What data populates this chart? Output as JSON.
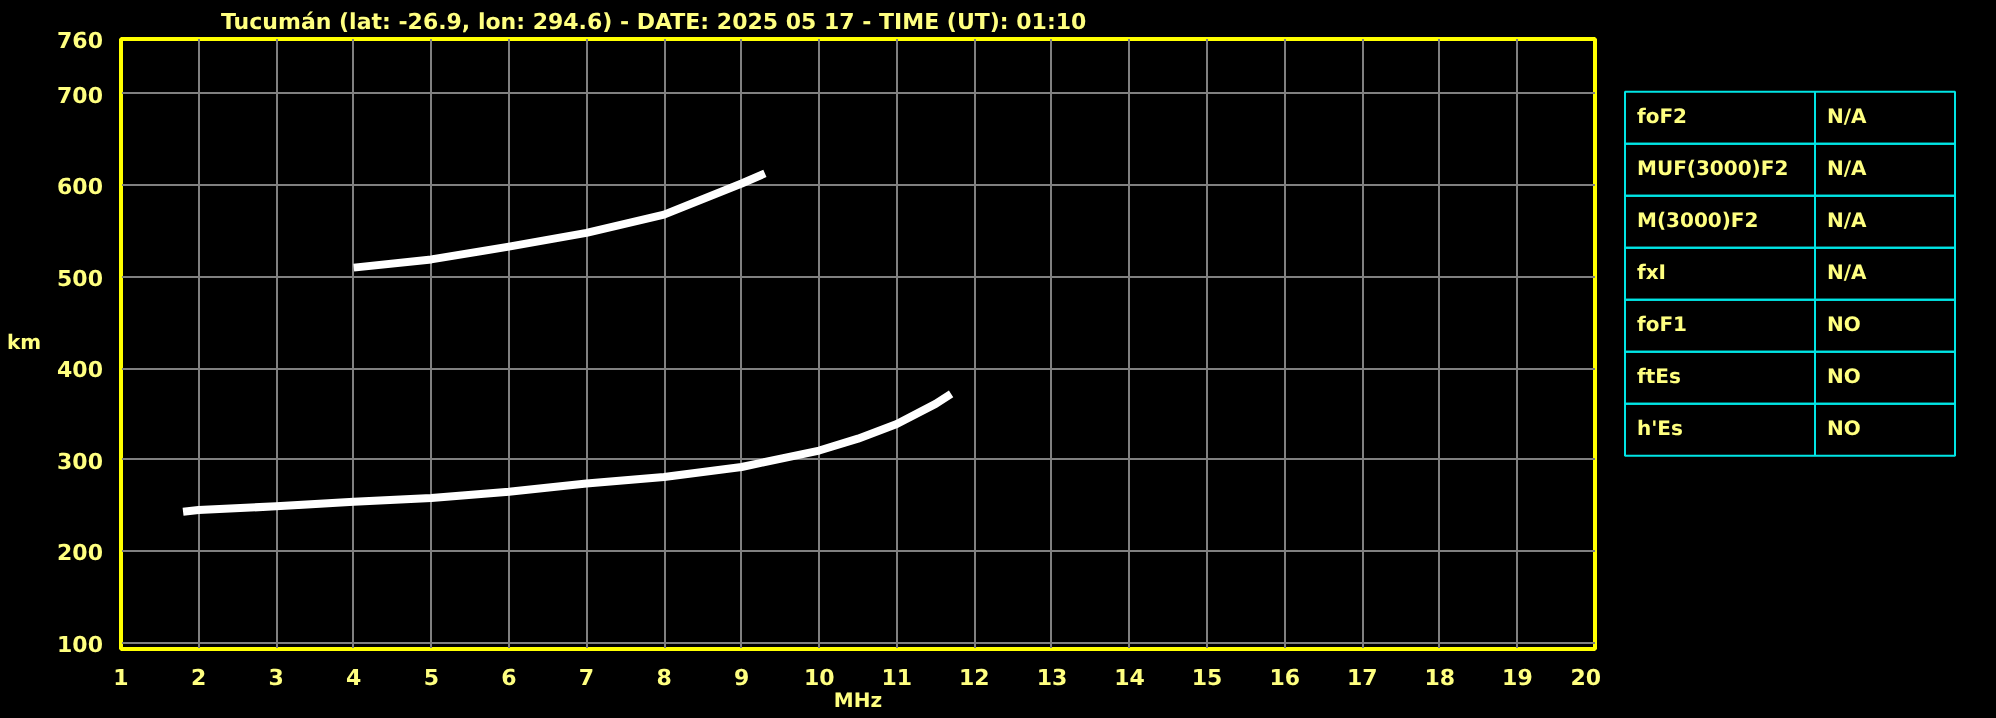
{
  "chart_data": [
    {
      "type": "line",
      "title": "Tucumán (lat: -26.9, lon: 294.6) - DATE: 2025 05 17 - TIME (UT): 01:10",
      "xlabel": "MHz",
      "ylabel": "km",
      "xlim": [
        1,
        20
      ],
      "ylim": [
        93,
        760
      ],
      "xticks": [
        1,
        2,
        3,
        4,
        5,
        6,
        7,
        8,
        9,
        10,
        11,
        12,
        13,
        14,
        15,
        16,
        17,
        18,
        19,
        20
      ],
      "yticks": [
        100,
        200,
        300,
        400,
        500,
        600,
        700,
        760
      ],
      "grid": true,
      "marker": "none",
      "line_style": "solid",
      "series": [
        {
          "color": "#ffffff",
          "x": [
            1.8,
            2,
            3,
            4,
            5,
            6,
            7,
            8,
            9,
            10,
            10.5,
            11,
            11.5,
            11.7
          ],
          "values": [
            243,
            245,
            249,
            254,
            258,
            265,
            274,
            281,
            292,
            310,
            323,
            339,
            361,
            372
          ]
        },
        {
          "color": "#ffffff",
          "x": [
            4.0,
            5,
            6,
            7,
            8,
            9,
            9.3
          ],
          "values": [
            510,
            519,
            533,
            548,
            568,
            602,
            613
          ]
        }
      ]
    },
    {
      "type": "other",
      "annotations": [
        "foF2",
        "N/A",
        "MUF(3000)F2",
        "N/A",
        "M(3000)F2",
        "N/A",
        "fxI",
        "N/A",
        "foF1",
        "NO",
        "ftEs",
        "NO",
        "h'Es",
        "NO"
      ]
    }
  ]
}
